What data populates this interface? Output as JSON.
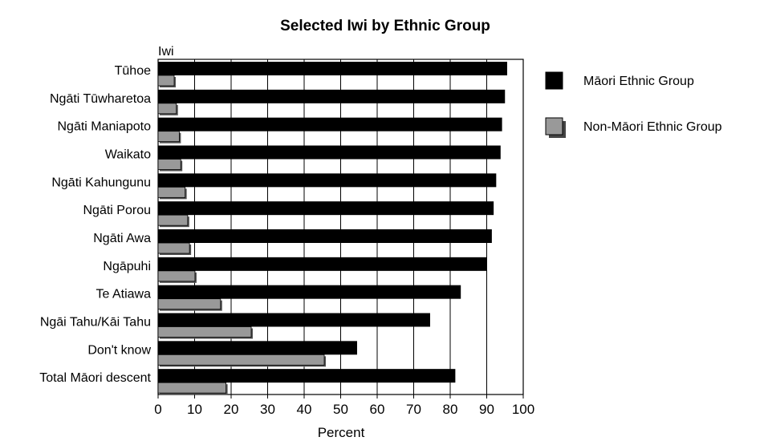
{
  "chart_data": {
    "type": "bar",
    "orientation": "horizontal",
    "title": "Selected Iwi by Ethnic Group",
    "category_axis_label": "Iwi",
    "xlabel": "Percent",
    "xlim": [
      0,
      100
    ],
    "x_ticks": [
      "0",
      "10",
      "20",
      "30",
      "40",
      "50",
      "60",
      "70",
      "80",
      "90",
      "100"
    ],
    "grid": "vertical",
    "legend_position": "right",
    "categories": [
      "Tūhoe",
      "Ngāti Tūwharetoa",
      "Ngāti Maniapoto",
      "Waikato",
      "Ngāti Kahungunu",
      "Ngāti Porou",
      "Ngāti Awa",
      "Ngāpuhi",
      "Te Atiawa",
      "Ngāi Tahu/Kāi Tahu",
      "Don't know",
      "Total Māori descent"
    ],
    "series": [
      {
        "name": "Māori Ethnic Group",
        "color": "#000000",
        "values": [
          95.6,
          95.0,
          94.2,
          93.8,
          92.6,
          91.9,
          91.4,
          89.9,
          82.9,
          74.5,
          54.5,
          81.4
        ]
      },
      {
        "name": "Non-Māori Ethnic Group",
        "color": "#999999",
        "values": [
          4.4,
          5.0,
          5.8,
          6.2,
          7.4,
          8.1,
          8.6,
          10.1,
          17.1,
          25.5,
          45.5,
          18.6
        ]
      }
    ]
  }
}
